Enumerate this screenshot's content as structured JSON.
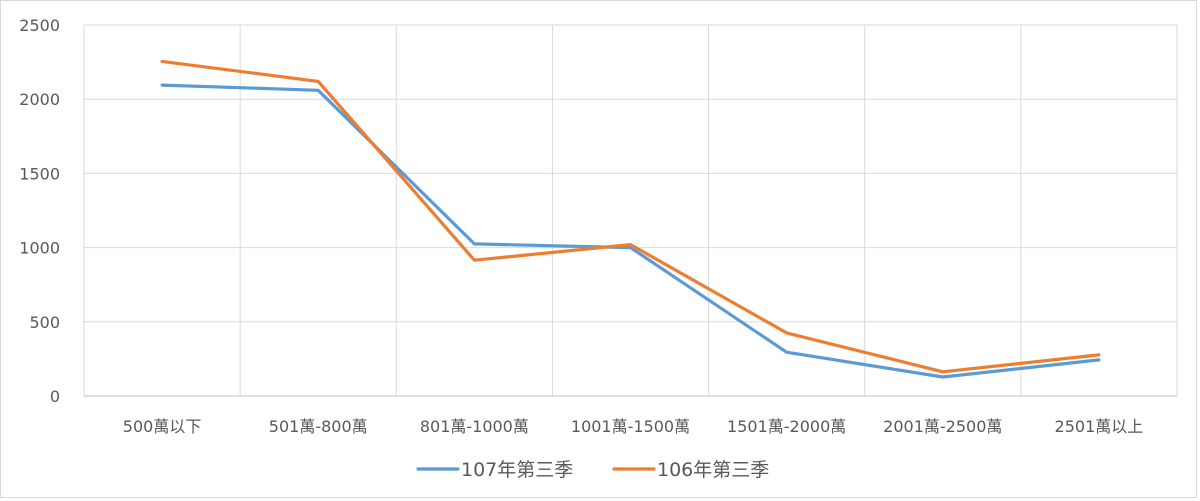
{
  "chart_data": {
    "type": "line",
    "title": "",
    "xlabel": "",
    "ylabel": "",
    "categories": [
      "500萬以下",
      "501萬-800萬",
      "801萬-1000萬",
      "1001萬-1500萬",
      "1501萬-2000萬",
      "2001萬-2500萬",
      "2501萬以上"
    ],
    "ylim": [
      0,
      2500
    ],
    "yticks": [
      "0",
      "500",
      "1000",
      "1500",
      "2000",
      "2500"
    ],
    "grid": "on",
    "legend_position": "bottom",
    "series": [
      {
        "name": "107年第三季",
        "color": "#5b9bd5",
        "values": [
          2095,
          2060,
          1025,
          1000,
          295,
          128,
          243
        ]
      },
      {
        "name": "106年第三季",
        "color": "#ed7d31",
        "values": [
          2255,
          2120,
          915,
          1020,
          425,
          163,
          277
        ]
      }
    ]
  }
}
